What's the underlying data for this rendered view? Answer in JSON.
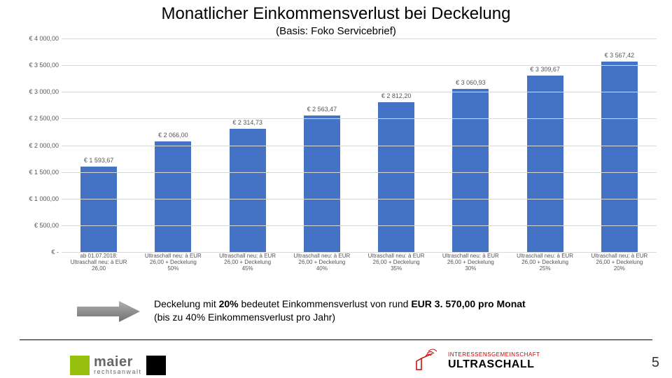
{
  "chart": {
    "type": "bar",
    "title": "Monatlicher Einkommensverlust bei Deckelung",
    "subtitle": "(Basis: Foko Servicebrief)",
    "ylim": [
      0,
      4000
    ],
    "ytick_step": 500,
    "yticks": [
      "€ -",
      "€ 500,00",
      "€ 1 000,00",
      "€ 1 500,00",
      "€ 2 000,00",
      "€ 2 500,00",
      "€ 3 000,00",
      "€ 3 500,00",
      "€ 4 000,00"
    ],
    "bar_color": "#4472c4",
    "grid_color": "#d9d9d9",
    "background_color": "#ffffff",
    "categories": [
      "ab 01.07.2018:\nUltraschall neu: à EUR\n26,00",
      "Ultraschall neu: à EUR\n26,00 + Deckelung\n50%",
      "Ultraschall neu: à EUR\n26,00 + Deckelung\n45%",
      "Ultraschall neu: à EUR\n26,00 + Deckelung\n40%",
      "Ultraschall neu: à EUR\n26,00 + Deckelung\n35%",
      "Ultraschall neu: à EUR\n26,00 + Deckelung\n30%",
      "Ultraschall neu: à EUR\n26,00 + Deckelung\n25%",
      "Ultraschall neu: à EUR\n26,00 + Deckelung\n20%"
    ],
    "values": [
      1593.67,
      2066.0,
      2314.73,
      2563.47,
      2812.2,
      3060.93,
      3309.67,
      3567.42
    ],
    "value_labels": [
      "€ 1 593,67",
      "€ 2 066,00",
      "€ 2 314,73",
      "€ 2 563,47",
      "€ 2 812,20",
      "€ 3 060,93",
      "€ 3 309,67",
      "€ 3 567,42"
    ]
  },
  "caption": {
    "line1": "Deckelung mit ",
    "bold1": "20%",
    "line2": " bedeutet Einkommensverlust von rund ",
    "bold2": "EUR 3. 570,00 pro Monat",
    "line3": "(bis zu 40% Einkommensverlust pro Jahr)"
  },
  "arrow_color": "#808080",
  "footer": {
    "maier_name": "maier",
    "maier_sub": "rechtsanwalt",
    "ultra_top": "INTERESSENSGEMEINSCHAFT",
    "ultra_bottom": "ULTRASCHALL"
  },
  "page_number": "5"
}
